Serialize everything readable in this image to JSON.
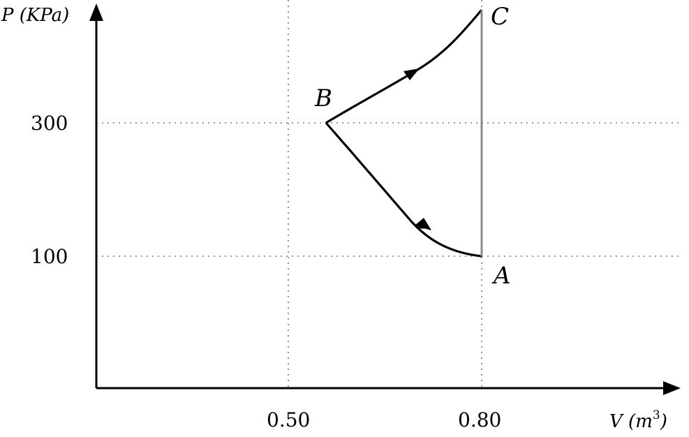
{
  "diagram": {
    "y_axis": {
      "label_main": "P ",
      "label_unit": "(KPa)"
    },
    "x_axis": {
      "label_main": "V ",
      "label_unit_base": "(m",
      "label_unit_exp": "3",
      "label_unit_close": ")"
    },
    "y_ticks": [
      "300",
      "100"
    ],
    "x_ticks": [
      "0.50",
      "0.80"
    ],
    "points": {
      "A": "A",
      "B": "B",
      "C": "C"
    }
  }
}
